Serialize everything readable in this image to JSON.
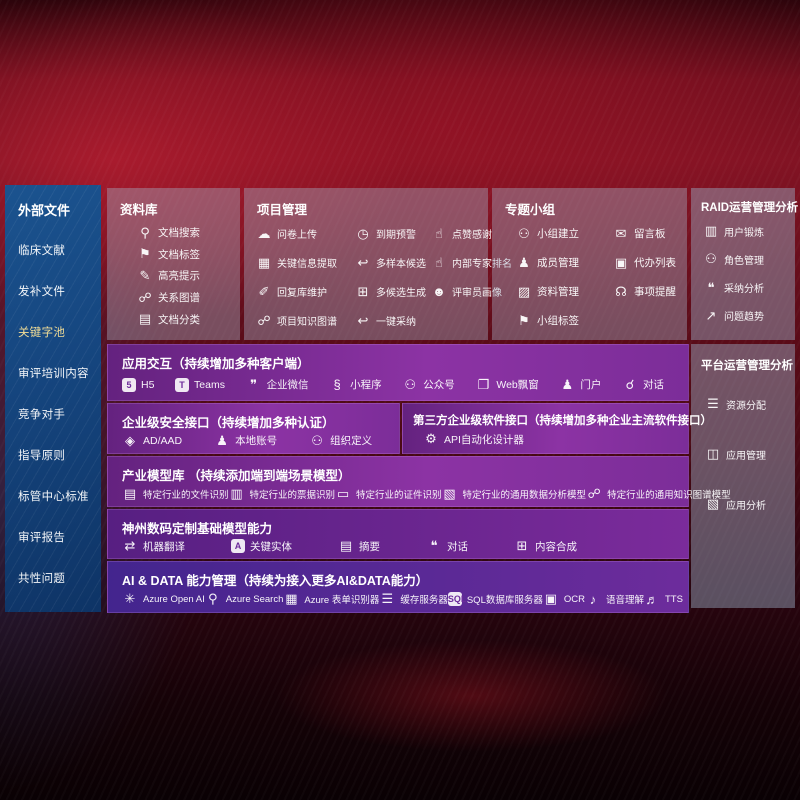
{
  "colors": {
    "background_red": "#7e1323",
    "sidebar_blue": "#15457e",
    "panel_gray": "rgba(166,178,200,0.40)",
    "row_purple": "#7c2d99",
    "highlight_yellow": "#f2dd96"
  },
  "sidebar": {
    "title": "外部文件",
    "items": [
      {
        "label": "临床文献"
      },
      {
        "label": "发补文件"
      },
      {
        "label": "关键字池",
        "color": "#f2dd96"
      },
      {
        "label": "审评培训内容"
      },
      {
        "label": "竞争对手"
      },
      {
        "label": "指导原则"
      },
      {
        "label": "标管中心标准"
      },
      {
        "label": "审评报告"
      },
      {
        "label": "共性问题"
      }
    ]
  },
  "panels": {
    "library": {
      "title": "资料库",
      "items": [
        {
          "icon_name": "doc-search-icon",
          "icon": "⚲",
          "label": "文档搜索"
        },
        {
          "icon_name": "tag-icon",
          "icon": "⚑",
          "label": "文档标签"
        },
        {
          "icon_name": "highlighter-icon",
          "icon": "✎",
          "label": "高亮提示"
        },
        {
          "icon_name": "relation-graph-icon",
          "icon": "☍",
          "label": "关系图谱"
        },
        {
          "icon_name": "doc-category-icon",
          "icon": "▤",
          "label": "文档分类"
        }
      ]
    },
    "project": {
      "title": "项目管理",
      "items": [
        {
          "icon_name": "cloud-upload-icon",
          "icon": "☁",
          "label": "问卷上传"
        },
        {
          "icon_name": "alarm-icon",
          "icon": "◷",
          "label": "到期预警"
        },
        {
          "icon_name": "thumbs-up-icon",
          "icon": "☝",
          "label": "点赞感谢"
        },
        {
          "icon_name": "key-info-icon",
          "icon": "▦",
          "label": "关键信息提取"
        },
        {
          "icon_name": "reply-arrow-icon",
          "icon": "↩",
          "label": "多样本候选"
        },
        {
          "icon_name": "expert-rank-icon",
          "icon": "☝",
          "label": "内部专家排名"
        },
        {
          "icon_name": "pen-icon",
          "icon": "✐",
          "label": "回复库维护"
        },
        {
          "icon_name": "multi-gen-icon",
          "icon": "⊞",
          "label": "多候选生成"
        },
        {
          "icon_name": "reviewer-icon",
          "icon": "☻",
          "label": "评审员画像"
        },
        {
          "icon_name": "knowledge-graph-icon",
          "icon": "☍",
          "label": "项目知识图谱"
        },
        {
          "icon_name": "adopt-arrow-icon",
          "icon": "↩",
          "label": "一键采纳"
        }
      ]
    },
    "topic": {
      "title": "专题小组",
      "items": [
        {
          "icon_name": "group-create-icon",
          "icon": "⚇",
          "label": "小组建立"
        },
        {
          "icon_name": "bbs-icon",
          "icon": "✉",
          "label": "留言板"
        },
        {
          "icon_name": "member-icon",
          "icon": "♟",
          "label": "成员管理"
        },
        {
          "icon_name": "todo-list-icon",
          "icon": "▣",
          "label": "代办列表"
        },
        {
          "icon_name": "material-icon",
          "icon": "▨",
          "label": "资料管理"
        },
        {
          "icon_name": "bell-icon",
          "icon": "☊",
          "label": "事项提醒"
        },
        {
          "icon_name": "group-tag-icon",
          "icon": "⚑",
          "label": "小组标签"
        }
      ]
    },
    "raid": {
      "title": "RAID运营管理分析",
      "items": [
        {
          "icon_name": "user-card-icon",
          "icon": "▥",
          "label": "用户锻炼"
        },
        {
          "icon_name": "role-icon",
          "icon": "⚇",
          "label": "角色管理"
        },
        {
          "icon_name": "qa-chat-icon",
          "icon": "❝",
          "label": "采纳分析"
        },
        {
          "icon_name": "trend-icon",
          "icon": "↗",
          "label": "问题趋势"
        }
      ]
    },
    "platform": {
      "title": "平台运营管理分析",
      "items": [
        {
          "icon_name": "resource-list-icon",
          "icon": "☰",
          "label": "资源分配"
        },
        {
          "icon_name": "apps-grid-icon",
          "icon": "◫",
          "label": "应用管理"
        },
        {
          "icon_name": "app-chart-icon",
          "icon": "▧",
          "label": "应用分析"
        }
      ]
    }
  },
  "rows": {
    "interaction": {
      "title": "应用交互（持续增加多种客户端）",
      "items": [
        {
          "icon_name": "h5-icon",
          "icon": "5",
          "label": "H5"
        },
        {
          "icon_name": "teams-icon",
          "icon": "T",
          "label": "Teams"
        },
        {
          "icon_name": "wechat-work-icon",
          "icon": "❞",
          "label": "企业微信"
        },
        {
          "icon_name": "mini-program-icon",
          "icon": "§",
          "label": "小程序"
        },
        {
          "icon_name": "official-account-icon",
          "icon": "⚇",
          "label": "公众号"
        },
        {
          "icon_name": "web-popup-icon",
          "icon": "❐",
          "label": "Web飘窗"
        },
        {
          "icon_name": "portal-icon",
          "icon": "♟",
          "label": "门户"
        },
        {
          "icon_name": "dialog-icon",
          "icon": "☌",
          "label": "对话"
        }
      ]
    },
    "security": {
      "title": "企业级安全接口（持续增加多种认证）",
      "items": [
        {
          "icon_name": "ad-icon",
          "icon": "◈",
          "label": "AD/AAD"
        },
        {
          "icon_name": "local-account-icon",
          "icon": "♟",
          "label": "本地账号"
        },
        {
          "icon_name": "org-define-icon",
          "icon": "⚇",
          "label": "组织定义"
        }
      ]
    },
    "third_party": {
      "title": "第三方企业级软件接口（持续增加多种企业主流软件接口）",
      "items": [
        {
          "icon_name": "api-gear-icon",
          "icon": "⚙",
          "label": "API自动化设计器"
        }
      ]
    },
    "industry_models": {
      "title": "产业模型库 （持续添加端到端场景模型）",
      "items": [
        {
          "icon_name": "file-recognize-icon",
          "icon": "▤",
          "label": "特定行业的文件识别"
        },
        {
          "icon_name": "receipt-recognize-icon",
          "icon": "▥",
          "label": "特定行业的票据识别"
        },
        {
          "icon_name": "idcard-recognize-icon",
          "icon": "▭",
          "label": "特定行业的证件识别"
        },
        {
          "icon_name": "data-analysis-model-icon",
          "icon": "▧",
          "label": "特定行业的通用数据分析模型"
        },
        {
          "icon_name": "knowledge-graph-model-icon",
          "icon": "☍",
          "label": "特定行业的通用知识图谱模型"
        }
      ]
    },
    "base_models": {
      "title": "神州数码定制基础模型能力",
      "items": [
        {
          "icon_name": "translate-icon",
          "icon": "⇄",
          "label": "机器翻译"
        },
        {
          "icon_name": "entity-icon",
          "icon": "A",
          "label": "关键实体"
        },
        {
          "icon_name": "summary-icon",
          "icon": "▤",
          "label": "摘要"
        },
        {
          "icon_name": "chat-icon",
          "icon": "❝",
          "label": "对话"
        },
        {
          "icon_name": "compose-icon",
          "icon": "⊞",
          "label": "内容合成"
        }
      ]
    },
    "ai_data": {
      "title": "AI & DATA 能力管理（持续为接入更多AI&DATA能力）",
      "items": [
        {
          "icon_name": "openai-icon",
          "icon": "✳",
          "label": "Azure Open AI"
        },
        {
          "icon_name": "azure-search-icon",
          "icon": "⚲",
          "label": "Azure Search"
        },
        {
          "icon_name": "form-recognizer-icon",
          "icon": "▦",
          "label": "Azure 表单识别器"
        },
        {
          "icon_name": "cache-server-icon",
          "icon": "☰",
          "label": "缓存服务器"
        },
        {
          "icon_name": "sql-db-icon",
          "icon": "SQL",
          "label": "SQL数据库服务器"
        },
        {
          "icon_name": "ocr-icon",
          "icon": "▣",
          "label": "OCR"
        },
        {
          "icon_name": "speech-icon",
          "icon": "♪",
          "label": "语音理解"
        },
        {
          "icon_name": "tts-icon",
          "icon": "♬",
          "label": "TTS"
        }
      ]
    }
  }
}
